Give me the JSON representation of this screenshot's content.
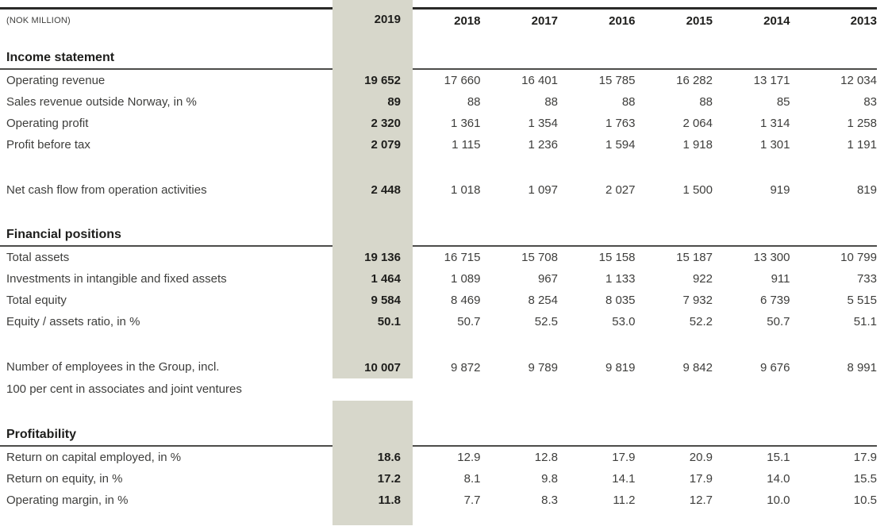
{
  "table": {
    "unit_label": "(NOK MILLION)",
    "highlight_year_index": 0,
    "highlight_color": "#d7d7cb",
    "years": [
      "2019",
      "2018",
      "2017",
      "2016",
      "2015",
      "2014",
      "2013"
    ],
    "sections": [
      {
        "title": "Income statement",
        "rows": [
          {
            "label": "Operating revenue",
            "values": [
              "19 652",
              "17 660",
              "16 401",
              "15 785",
              "16 282",
              "13 171",
              "12 034"
            ]
          },
          {
            "label": "Sales revenue outside Norway, in %",
            "values": [
              "89",
              "88",
              "88",
              "88",
              "88",
              "85",
              "83"
            ]
          },
          {
            "label": "Operating profit",
            "values": [
              "2 320",
              "1 361",
              "1 354",
              "1 763",
              "2 064",
              "1 314",
              "1 258"
            ]
          },
          {
            "label": "Profit before tax",
            "values": [
              "2 079",
              "1 115",
              "1 236",
              "1 594",
              "1 918",
              "1 301",
              "1 191"
            ],
            "spacer_after": true
          },
          {
            "label": "Net cash flow from operation activities",
            "values": [
              "2 448",
              "1 018",
              "1 097",
              "2 027",
              "1 500",
              "919",
              "819"
            ],
            "spacer_after": true
          }
        ]
      },
      {
        "title": "Financial positions",
        "rows": [
          {
            "label": "Total assets",
            "values": [
              "19 136",
              "16 715",
              "15 708",
              "15 158",
              "15 187",
              "13 300",
              "10 799"
            ]
          },
          {
            "label": "Investments in intangible and fixed assets",
            "values": [
              "1 464",
              "1 089",
              "967",
              "1 133",
              "922",
              "911",
              "733"
            ]
          },
          {
            "label": "Total equity",
            "values": [
              "9 584",
              "8 469",
              "8 254",
              "8 035",
              "7 932",
              "6 739",
              "5 515"
            ]
          },
          {
            "label": "Equity / assets ratio, in %",
            "values": [
              "50.1",
              "50.7",
              "52.5",
              "53.0",
              "52.2",
              "50.7",
              "51.1"
            ],
            "spacer_after": true
          },
          {
            "label": "Number of employees in the Group, incl.",
            "label_line2": "100 per cent in associates and joint ventures",
            "values": [
              "10 007",
              "9 872",
              "9 789",
              "9 819",
              "9 842",
              "9 676",
              "8 991"
            ],
            "spacer_after": true
          }
        ]
      },
      {
        "title": "Profitability",
        "rows": [
          {
            "label": "Return on capital employed, in %",
            "values": [
              "18.6",
              "12.9",
              "12.8",
              "17.9",
              "20.9",
              "15.1",
              "17.9"
            ]
          },
          {
            "label": "Return on equity, in %",
            "values": [
              "17.2",
              "8.1",
              "9.8",
              "14.1",
              "17.9",
              "14.0",
              "15.5"
            ]
          },
          {
            "label": "Operating margin, in %",
            "values": [
              "11.8",
              "7.7",
              "8.3",
              "11.2",
              "12.7",
              "10.0",
              "10.5"
            ]
          }
        ]
      }
    ]
  }
}
